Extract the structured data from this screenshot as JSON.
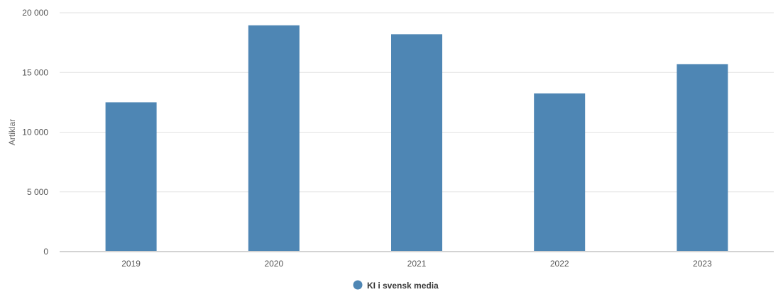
{
  "chart_data": {
    "type": "bar",
    "title": "",
    "xlabel": "",
    "ylabel": "Artiklar",
    "categories": [
      "2019",
      "2020",
      "2021",
      "2022",
      "2023"
    ],
    "series": [
      {
        "name": "KI i svensk media",
        "values": [
          12500,
          18950,
          18200,
          13250,
          15700
        ],
        "color": "#4e86b4"
      }
    ],
    "ylim": [
      0,
      20000
    ],
    "yticks": [
      0,
      5000,
      10000,
      15000,
      20000
    ],
    "ytick_labels": [
      "0",
      "5 000",
      "10 000",
      "15 000",
      "20 000"
    ],
    "grid": true,
    "legend": "bottom-center"
  }
}
